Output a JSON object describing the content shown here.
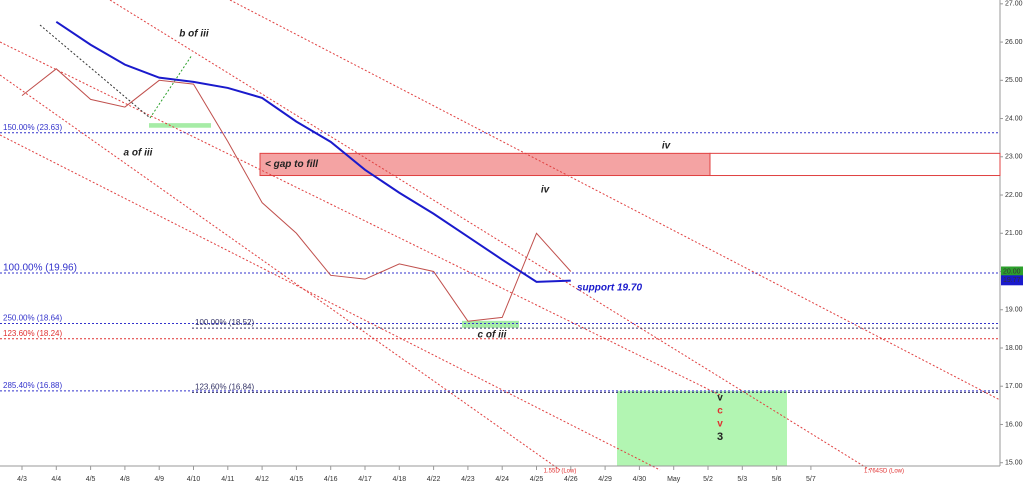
{
  "chart_data": {
    "type": "line",
    "categories": [
      "4/3",
      "4/4",
      "4/5",
      "4/8",
      "4/9",
      "4/10",
      "4/11",
      "4/12",
      "4/15",
      "4/16",
      "4/17",
      "4/18",
      "4/22",
      "4/23",
      "4/24",
      "4/25",
      "4/26",
      "4/29",
      "4/30",
      "May",
      "5/2",
      "5/3",
      "5/6",
      "5/7"
    ],
    "series": [
      {
        "color": "#c0504d",
        "values": [
          24.6,
          25.3,
          24.5,
          24.3,
          25.0,
          24.9,
          23.4,
          21.8,
          21.0,
          19.9,
          19.8,
          20.2,
          20.0,
          18.7,
          18.8,
          21.0,
          20.0,
          null,
          null,
          null,
          null,
          null,
          null,
          null
        ]
      },
      {
        "color": "#1a1acc",
        "values": [
          null,
          26.53,
          25.93,
          25.41,
          25.07,
          24.96,
          24.8,
          24.54,
          23.92,
          23.39,
          22.66,
          22.06,
          21.51,
          20.91,
          20.31,
          19.73,
          19.76,
          null,
          null,
          null,
          null,
          null,
          null,
          null
        ]
      }
    ],
    "ylim": [
      14.6,
      27.1
    ],
    "yticks": [
      {
        "value": 15,
        "label": "15.00"
      },
      {
        "value": 16,
        "label": "16.00"
      },
      {
        "value": 17,
        "label": "17.00"
      },
      {
        "value": 18,
        "label": "18.00"
      },
      {
        "value": 19,
        "label": "19.00"
      },
      {
        "value": 20,
        "label": "20.00"
      },
      {
        "value": 21,
        "label": "21.00"
      },
      {
        "value": 22,
        "label": "22.00"
      },
      {
        "value": 23,
        "label": "23.00"
      },
      {
        "value": 24,
        "label": "24.00"
      },
      {
        "value": 25,
        "label": "25.00"
      },
      {
        "value": 26,
        "label": "26.00"
      },
      {
        "value": 27,
        "label": "27.00"
      }
    ],
    "levels": [
      {
        "value": 23.63,
        "label": "150.00% (23.63)",
        "color": "#3333cc"
      },
      {
        "value": 19.96,
        "label": "100.00% (19.96)",
        "color": "#3333cc"
      },
      {
        "value": 18.64,
        "label": "250.00% (18.64)",
        "color": "#3333cc"
      },
      {
        "value": 18.52,
        "label": "100.00% (18.52)",
        "color": "#333366"
      },
      {
        "value": 18.24,
        "label": "123.60% (18.24)",
        "color": "#e03030"
      },
      {
        "value": 16.88,
        "label": "285.40% (16.88)",
        "color": "#3333cc"
      },
      {
        "value": 16.84,
        "label": "123.60% (16.84)",
        "color": "#333366"
      }
    ],
    "badges": [
      {
        "value": 20,
        "label": "20.00",
        "color": "#2ca02c"
      },
      {
        "value": 19.77,
        "label": "19.77",
        "color": "#1a1acc"
      }
    ],
    "zones": [
      {
        "range": [
          22.51,
          23.09
        ],
        "label": "< gap to fill",
        "color": "#f4a3a3"
      },
      {
        "range": [
          14.6,
          16.88
        ],
        "color": "#b2f5b2"
      },
      {
        "range": [
          23.76,
          23.88
        ],
        "color": "#a6eca6"
      },
      {
        "range": [
          18.53,
          18.71
        ],
        "color": "#a6eca6"
      }
    ],
    "annotations": [
      "b of iii",
      "a of iii",
      "iv",
      "iv",
      "support 19.70",
      "c of iii",
      "v",
      "c",
      "v",
      "3",
      "1.55D (Low)",
      "1.764SD (Low)"
    ]
  }
}
